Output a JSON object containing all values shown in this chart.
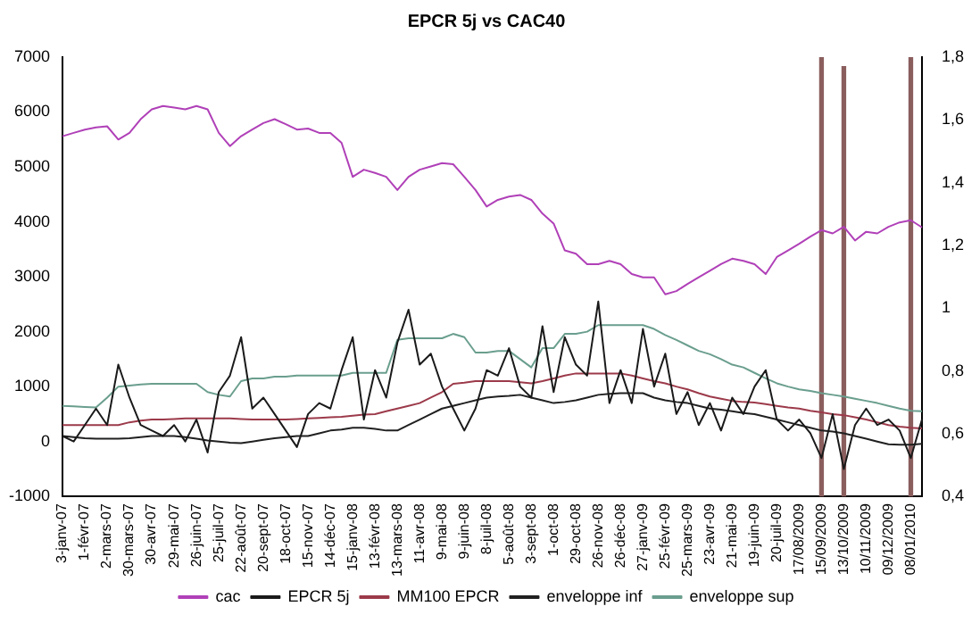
{
  "chart_data": {
    "type": "line",
    "title": "EPCR 5j vs CAC40",
    "categories": [
      "3-janv-07",
      null,
      "1-févr-07",
      null,
      "2-mars-07",
      null,
      "30-mars-07",
      null,
      "30-avr-07",
      null,
      "29-mai-07",
      null,
      "26-juin-07",
      null,
      "25-juil-07",
      null,
      "22-août-07",
      null,
      "20-sept-07",
      null,
      "18-oct-07",
      null,
      "15-nov-07",
      null,
      "14-déc-07",
      null,
      "15-janv-08",
      null,
      "13-févr-08",
      null,
      "13-mars-08",
      null,
      "11-avr-08",
      null,
      "9-mai-08",
      null,
      "9-juin-08",
      null,
      "8-juil-08",
      null,
      "5-août-08",
      null,
      "3-sept-08",
      null,
      "1-oct-08",
      null,
      "29-oct-08",
      null,
      "26-nov-08",
      null,
      "26-déc-08",
      null,
      "27-janv-09",
      null,
      "25-févr-09",
      null,
      "25-mars-09",
      null,
      "23-avr-09",
      null,
      "21-mai-09",
      null,
      "19-juin-09",
      null,
      "20-juil-09",
      null,
      "17/08/2009",
      null,
      "15/09/2009",
      null,
      "13/10/2009",
      null,
      "10/11/2009",
      null,
      "09/12/2009",
      null,
      "08/01/2010",
      null
    ],
    "series": [
      {
        "name": "cac",
        "color": "#b040b8",
        "values": [
          5560,
          5620,
          5680,
          5720,
          5740,
          5500,
          5620,
          5870,
          6050,
          6110,
          6080,
          6050,
          6110,
          6050,
          5620,
          5380,
          5560,
          5680,
          5800,
          5870,
          5780,
          5680,
          5700,
          5620,
          5620,
          5440,
          4820,
          4950,
          4890,
          4820,
          4580,
          4820,
          4950,
          5010,
          5070,
          5050,
          4820,
          4580,
          4280,
          4400,
          4460,
          4490,
          4400,
          4150,
          3970,
          3480,
          3420,
          3230,
          3230,
          3290,
          3230,
          3050,
          2990,
          2990,
          2680,
          2740,
          2870,
          2990,
          3110,
          3230,
          3330,
          3290,
          3230,
          3050,
          3360,
          3480,
          3600,
          3730,
          3850,
          3790,
          3910,
          3660,
          3820,
          3790,
          3910,
          3990,
          4030,
          3900
        ]
      },
      {
        "name": "EPCR 5j",
        "color": "#1a1a1a",
        "values": [
          100,
          0,
          300,
          600,
          300,
          1400,
          800,
          300,
          200,
          100,
          300,
          0,
          400,
          -200,
          900,
          1200,
          1900,
          600,
          800,
          500,
          200,
          -100,
          500,
          700,
          600,
          1300,
          1900,
          400,
          1300,
          800,
          1800,
          2400,
          1400,
          1600,
          1000,
          600,
          200,
          600,
          1300,
          1200,
          1700,
          1000,
          800,
          2100,
          900,
          1900,
          1400,
          1200,
          2550,
          700,
          1300,
          700,
          2050,
          1000,
          1600,
          500,
          900,
          300,
          700,
          200,
          800,
          500,
          1000,
          1300,
          400,
          200,
          400,
          150,
          -300,
          500,
          -500,
          300,
          600,
          300,
          400,
          200,
          -300,
          400
        ]
      },
      {
        "name": "MM100 EPCR",
        "color": "#9c3a4a",
        "values": [
          300,
          300,
          300,
          300,
          300,
          300,
          350,
          380,
          400,
          400,
          410,
          420,
          420,
          420,
          420,
          420,
          410,
          400,
          400,
          400,
          400,
          410,
          420,
          430,
          440,
          450,
          470,
          490,
          500,
          550,
          600,
          650,
          700,
          800,
          900,
          1050,
          1070,
          1100,
          1100,
          1100,
          1100,
          1080,
          1060,
          1100,
          1150,
          1200,
          1240,
          1240,
          1240,
          1240,
          1240,
          1200,
          1150,
          1100,
          1060,
          1000,
          950,
          880,
          820,
          780,
          740,
          720,
          710,
          680,
          650,
          620,
          600,
          560,
          530,
          500,
          480,
          440,
          400,
          350,
          300,
          270,
          250,
          240
        ]
      },
      {
        "name": "enveloppe inf",
        "color": "#202020",
        "values": [
          100,
          80,
          60,
          50,
          50,
          50,
          60,
          80,
          100,
          100,
          100,
          80,
          50,
          20,
          0,
          -20,
          -30,
          0,
          30,
          60,
          80,
          100,
          100,
          150,
          200,
          220,
          250,
          250,
          230,
          200,
          200,
          300,
          400,
          500,
          600,
          650,
          700,
          750,
          800,
          820,
          830,
          850,
          800,
          750,
          700,
          720,
          750,
          800,
          850,
          870,
          880,
          880,
          880,
          800,
          750,
          720,
          700,
          650,
          600,
          580,
          550,
          520,
          500,
          450,
          400,
          350,
          300,
          250,
          200,
          180,
          150,
          100,
          50,
          0,
          -50,
          -60,
          -60,
          -40
        ]
      },
      {
        "name": "enveloppe sup",
        "color": "#6a9e8e",
        "values": [
          650,
          640,
          630,
          620,
          800,
          1000,
          1020,
          1040,
          1050,
          1050,
          1050,
          1050,
          1050,
          900,
          850,
          820,
          1100,
          1150,
          1150,
          1180,
          1180,
          1200,
          1200,
          1200,
          1200,
          1200,
          1250,
          1250,
          1250,
          1250,
          1850,
          1880,
          1880,
          1880,
          1880,
          1960,
          1900,
          1620,
          1620,
          1650,
          1650,
          1500,
          1350,
          1700,
          1700,
          1960,
          1960,
          2000,
          2120,
          2120,
          2120,
          2120,
          2120,
          2050,
          1940,
          1850,
          1750,
          1650,
          1590,
          1500,
          1400,
          1350,
          1250,
          1150,
          1060,
          1000,
          950,
          920,
          880,
          850,
          820,
          780,
          740,
          700,
          650,
          600,
          560,
          550
        ]
      },
      {
        "type": "bar",
        "axis": "y2",
        "color": "#8b5e5e",
        "values": [
          null,
          null,
          null,
          null,
          null,
          null,
          null,
          null,
          null,
          null,
          null,
          null,
          null,
          null,
          null,
          null,
          null,
          null,
          null,
          null,
          null,
          null,
          null,
          null,
          null,
          null,
          null,
          null,
          null,
          null,
          null,
          null,
          null,
          null,
          null,
          null,
          null,
          null,
          null,
          null,
          null,
          null,
          null,
          null,
          null,
          null,
          null,
          null,
          null,
          null,
          null,
          null,
          null,
          null,
          null,
          null,
          null,
          null,
          null,
          null,
          null,
          null,
          null,
          null,
          null,
          null,
          null,
          null,
          1.8,
          null,
          1.77,
          null,
          null,
          null,
          null,
          null,
          1.8,
          null
        ]
      }
    ],
    "ylim": [
      -1000,
      7000
    ],
    "yticks": [
      -1000,
      0,
      1000,
      2000,
      3000,
      4000,
      5000,
      6000,
      7000
    ],
    "y2lim": [
      0.4,
      1.8
    ],
    "y2ticks": [
      {
        "value": 0.4,
        "label": "0,4"
      },
      {
        "value": 0.6,
        "label": "0,6"
      },
      {
        "value": 0.8,
        "label": "0,8"
      },
      1,
      {
        "value": 1.2,
        "label": "1,2"
      },
      {
        "value": 1.4,
        "label": "1,4"
      },
      {
        "value": 1.6,
        "label": "1,6"
      },
      {
        "value": 1.8,
        "label": "1,8"
      }
    ],
    "legend": "bottom",
    "grid": false,
    "marker": "none",
    "line_style": "solid"
  }
}
